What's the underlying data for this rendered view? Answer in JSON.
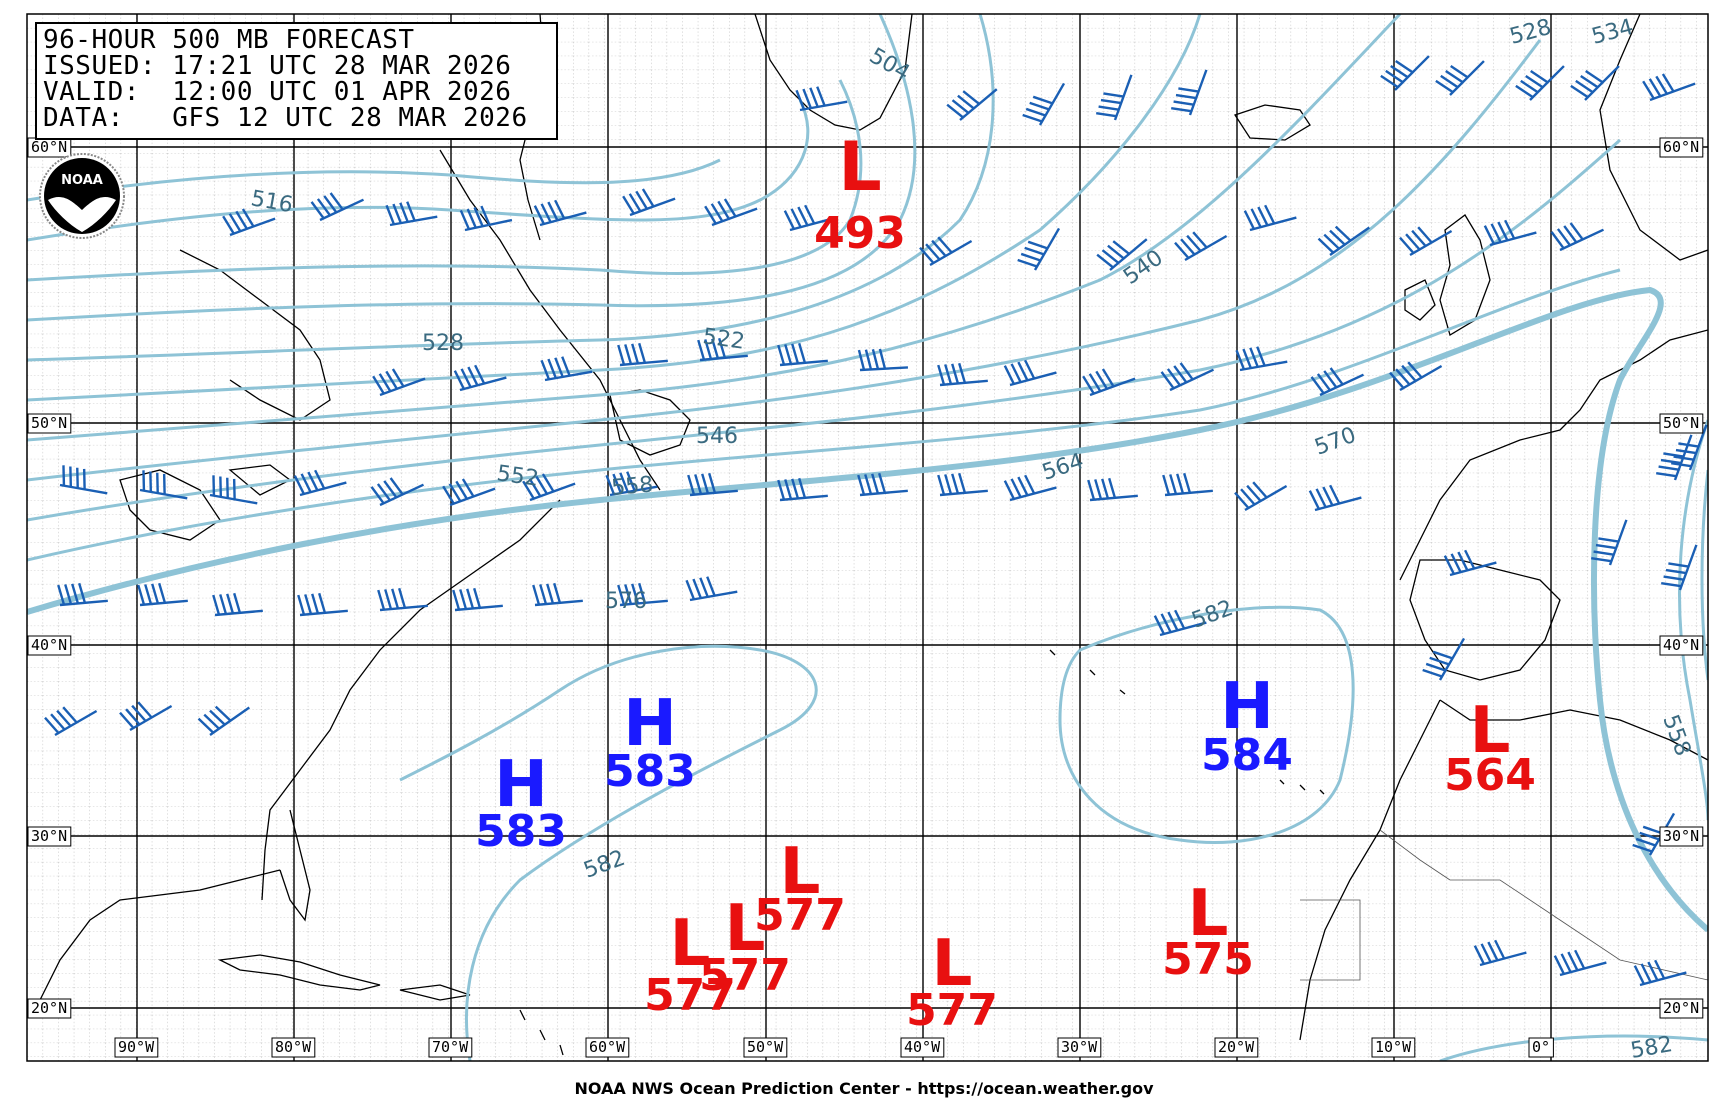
{
  "header": {
    "lines": [
      "96-HOUR 500 MB FORECAST",
      "ISSUED: 17:21 UTC 28 MAR 2026",
      "VALID:  12:00 UTC 01 APR 2026",
      "DATA:   GFS 12 UTC 28 MAR 2026"
    ]
  },
  "logo": {
    "text": "NOAA"
  },
  "footer": {
    "credit": "NOAA NWS Ocean Prediction Center - https://ocean.weather.gov"
  },
  "longitude_labels": [
    "90°W",
    "80°W",
    "70°W",
    "60°W",
    "50°W",
    "40°W",
    "30°W",
    "20°W",
    "10°W",
    "0°"
  ],
  "latitude_labels": [
    "60°N",
    "50°N",
    "40°N",
    "30°N",
    "20°N"
  ],
  "centers": [
    {
      "type": "L",
      "value": "493"
    },
    {
      "type": "H",
      "value": "583"
    },
    {
      "type": "H",
      "value": "583"
    },
    {
      "type": "H",
      "value": "584"
    },
    {
      "type": "L",
      "value": "564"
    },
    {
      "type": "L",
      "value": "577"
    },
    {
      "type": "L",
      "value": "577"
    },
    {
      "type": "L",
      "value": "577"
    },
    {
      "type": "L",
      "value": "577"
    },
    {
      "type": "L",
      "value": "575"
    }
  ],
  "contour_labels": [
    "504",
    "516",
    "522",
    "528",
    "528",
    "534",
    "540",
    "546",
    "552",
    "558",
    "564",
    "570",
    "576",
    "582",
    "582",
    "582",
    "558"
  ],
  "colors": {
    "low": "#e81010",
    "high": "#1a1aff",
    "contour": "#8ec3d6",
    "contour_label": "#3a6a80",
    "barb": "#1a5fb4",
    "grid": "#000000"
  }
}
